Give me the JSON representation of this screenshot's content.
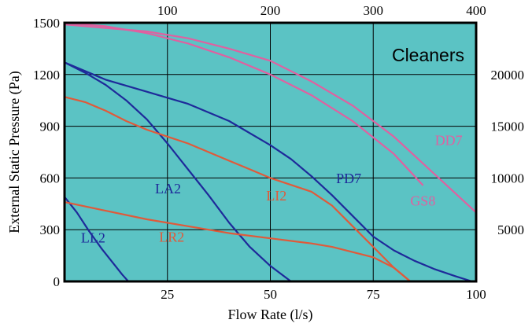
{
  "chart_data": {
    "type": "line",
    "title": "Cleaners",
    "xlabel": "Flow Rate (l/s)",
    "ylabel": "External Static Pressure (Pa)",
    "xlim": [
      0,
      100
    ],
    "ylim": [
      0,
      1500
    ],
    "top_axis": {
      "ticks": [
        100,
        200,
        300,
        400
      ],
      "lim": [
        0,
        400
      ]
    },
    "right_axis": {
      "ticks": [
        5000,
        10000,
        15000,
        20000
      ],
      "lim": [
        0,
        25000
      ]
    },
    "x_ticks": [
      25,
      50,
      75,
      100
    ],
    "y_ticks": [
      0,
      300,
      600,
      900,
      1200,
      1500
    ],
    "grid": true,
    "background_color": "#5bc3c4",
    "series": [
      {
        "name": "LL2",
        "color": "#1e2a9a",
        "x": [
          0,
          3,
          6,
          9,
          12,
          14,
          15.5
        ],
        "y": [
          490,
          400,
          290,
          190,
          100,
          40,
          0
        ]
      },
      {
        "name": "LA2",
        "color": "#1e2a9a",
        "x": [
          0,
          5,
          10,
          15,
          20,
          25,
          30,
          35,
          40,
          45,
          50,
          55
        ],
        "y": [
          1270,
          1210,
          1140,
          1050,
          940,
          800,
          650,
          500,
          340,
          200,
          90,
          0
        ]
      },
      {
        "name": "PD7",
        "color": "#1e2a9a",
        "x": [
          0,
          10,
          20,
          30,
          40,
          50,
          55,
          60,
          65,
          70,
          75,
          80,
          85,
          90,
          95,
          99
        ],
        "y": [
          1270,
          1170,
          1100,
          1030,
          930,
          790,
          710,
          610,
          500,
          380,
          260,
          180,
          120,
          70,
          30,
          0
        ]
      },
      {
        "name": "LI2",
        "color": "#e05a3a",
        "x": [
          0,
          5,
          10,
          15,
          20,
          25,
          30,
          35,
          40,
          45,
          50,
          55,
          60,
          65,
          70,
          75,
          80,
          84
        ],
        "y": [
          1070,
          1040,
          990,
          930,
          880,
          840,
          800,
          750,
          700,
          650,
          600,
          560,
          520,
          440,
          320,
          200,
          80,
          0
        ]
      },
      {
        "name": "LR2",
        "color": "#e05a3a",
        "x": [
          0,
          10,
          20,
          30,
          40,
          50,
          60,
          65,
          70,
          75,
          80,
          84
        ],
        "y": [
          460,
          410,
          360,
          320,
          280,
          250,
          220,
          200,
          170,
          140,
          80,
          0
        ]
      },
      {
        "name": "DD7",
        "color": "#e060a0",
        "x": [
          0,
          10,
          20,
          30,
          40,
          50,
          60,
          70,
          80,
          87
        ],
        "y": [
          1500,
          1480,
          1440,
          1380,
          1300,
          1200,
          1080,
          930,
          740,
          560
        ]
      },
      {
        "name": "GS8",
        "color": "#e060a0",
        "x": [
          0,
          10,
          20,
          30,
          40,
          50,
          60,
          70,
          80,
          90,
          100
        ],
        "y": [
          1490,
          1470,
          1450,
          1410,
          1350,
          1280,
          1160,
          1020,
          840,
          620,
          400
        ]
      }
    ],
    "annotations": [
      {
        "text": "LL2",
        "x": 4,
        "y": 225,
        "color": "#1e2a9a"
      },
      {
        "text": "LA2",
        "x": 22,
        "y": 510,
        "color": "#1e2a9a"
      },
      {
        "text": "PD7",
        "x": 66,
        "y": 570,
        "color": "#1e2a9a"
      },
      {
        "text": "LI2",
        "x": 49,
        "y": 470,
        "color": "#e05a3a"
      },
      {
        "text": "LR2",
        "x": 23,
        "y": 230,
        "color": "#e05a3a"
      },
      {
        "text": "DD7",
        "x": 90,
        "y": 790,
        "color": "#e060a0"
      },
      {
        "text": "GS8",
        "x": 84,
        "y": 440,
        "color": "#e060a0"
      }
    ]
  }
}
